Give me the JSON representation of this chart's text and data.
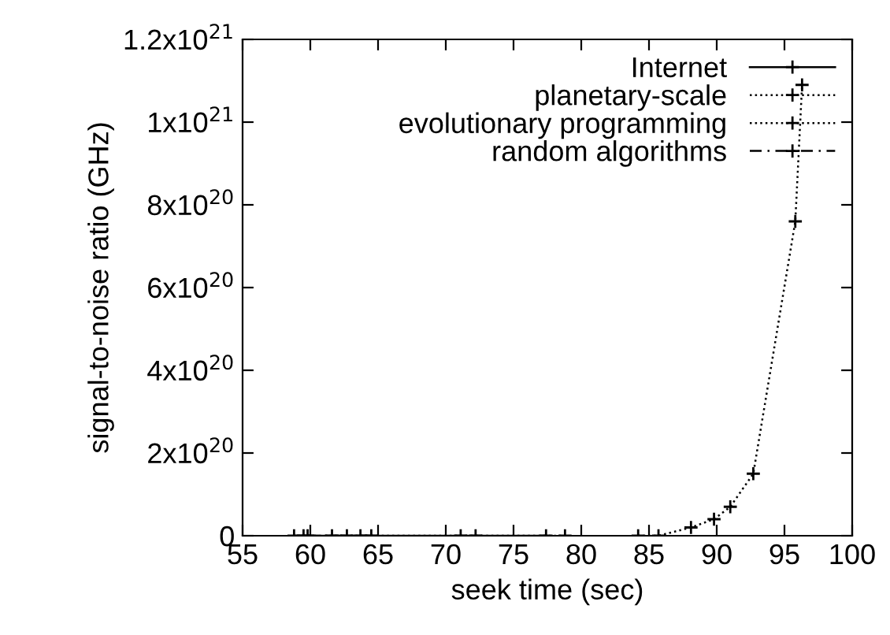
{
  "chart_data": {
    "type": "line",
    "xlabel": "seek time (sec)",
    "ylabel": "signal-to-noise ratio (GHz)",
    "series": [
      {
        "name": "Internet",
        "color": "#000000",
        "line_style": "solid",
        "x": [
          58.8,
          61.6,
          63.7,
          71.1,
          77.4
        ],
        "values": [
          0,
          0,
          0,
          0,
          0
        ]
      },
      {
        "name": "planetary-scale",
        "color": "#000000",
        "line_style": "dotted",
        "x": [
          84.2,
          85.7,
          88.1,
          89.8,
          91.0,
          92.7,
          95.8,
          96.3
        ],
        "values": [
          0,
          0,
          2e+19,
          4e+19,
          7e+19,
          1.5e+20,
          7.6e+20,
          1.09e+21
        ]
      },
      {
        "name": "evolutionary programming",
        "color": "#000000",
        "line_style": "dotted",
        "x": [
          59.5,
          62.7,
          72.2,
          78.8
        ],
        "values": [
          0,
          0,
          0,
          0
        ]
      },
      {
        "name": "random algorithms",
        "color": "#000000",
        "line_style": "dashed",
        "x": [
          59.8,
          64.5
        ],
        "values": [
          0,
          0
        ]
      }
    ],
    "xlim": [
      55,
      100
    ],
    "xticks": [
      55,
      60,
      65,
      70,
      75,
      80,
      85,
      90,
      95,
      100
    ],
    "ylim": [
      0,
      1.2e+21
    ],
    "yticks": [
      {
        "value": 0,
        "label": "0"
      },
      {
        "value": 2e+20,
        "label": "2x10$^{20}$"
      },
      {
        "value": 4e+20,
        "label": "4x10$^{20}$"
      },
      {
        "value": 6e+20,
        "label": "6x10$^{20}$"
      },
      {
        "value": 8e+20,
        "label": "8x10$^{20}$"
      },
      {
        "value": 1e+21,
        "label": "1x10$^{21}$"
      },
      {
        "value": 1.2e+21,
        "label": "1.2x10$^{21}$"
      }
    ],
    "marker": "cross",
    "grid": false,
    "legend": "top right"
  }
}
